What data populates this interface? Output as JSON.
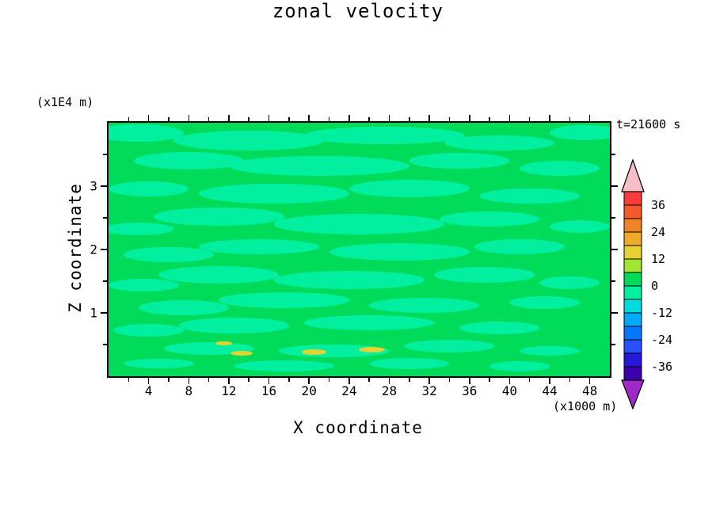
{
  "page": {
    "background": "#ffffff"
  },
  "chart_data": {
    "type": "contour",
    "title": "zonal velocity",
    "xlabel": "X coordinate",
    "ylabel": "Z coordinate",
    "z_unit_label": "(x1E4 m)",
    "x_unit_label": "(x1000 m)",
    "time_label": "t=21600 s",
    "x_range": [
      0,
      50
    ],
    "z_range": [
      0,
      4
    ],
    "x_major_ticks": [
      4,
      8,
      12,
      16,
      20,
      24,
      28,
      32,
      36,
      40,
      44,
      48
    ],
    "x_minor_step": 2,
    "z_major_ticks": [
      1,
      2,
      3
    ],
    "z_minor_ticks": [
      0.5,
      1.5,
      2.5,
      3.5
    ],
    "description": "Filled contour field of zonal velocity; values almost everywhere between -6 and +6 (two green bands, elongated horizontal structures), with a few isolated yellow maxima (~12-18) near the bottom boundary.",
    "field_colors": {
      "base": "#00DC5A",
      "blob": "#00F0A0",
      "spot": "#E0D434"
    },
    "colorbar": {
      "labels": [
        "36",
        "24",
        "12",
        "0",
        "-12",
        "-24",
        "-36"
      ],
      "label_step": 12,
      "segment_step": 6,
      "level_min": -42,
      "level_max": 42,
      "segments_top_to_bottom": [
        "#FA3C3C",
        "#F55A28",
        "#F08228",
        "#F0AA28",
        "#E6D232",
        "#A0E632",
        "#00DC5A",
        "#00F0A0",
        "#00DCDC",
        "#00AAFF",
        "#0078FF",
        "#2850FF",
        "#2818DC",
        "#3C00AA"
      ],
      "arrow_top_color": "#F5BEC8",
      "arrow_bottom_color": "#A028C8"
    },
    "blobs": [
      [
        6,
        4,
        9,
        3.5
      ],
      [
        28,
        7,
        15,
        4
      ],
      [
        55,
        5,
        16,
        3.5
      ],
      [
        78,
        8,
        11,
        3
      ],
      [
        95,
        4,
        7,
        3
      ],
      [
        16,
        15,
        11,
        3.5
      ],
      [
        42,
        17,
        18,
        4
      ],
      [
        70,
        15,
        10,
        3
      ],
      [
        90,
        18,
        8,
        3
      ],
      [
        8,
        26,
        8,
        3
      ],
      [
        33,
        28,
        15,
        4
      ],
      [
        60,
        26,
        12,
        3.5
      ],
      [
        84,
        29,
        10,
        3
      ],
      [
        22,
        37,
        13,
        3.5
      ],
      [
        50,
        40,
        17,
        4
      ],
      [
        76,
        38,
        10,
        3
      ],
      [
        94,
        41,
        6,
        2.5
      ],
      [
        6,
        42,
        7,
        2.5
      ],
      [
        30,
        49,
        12,
        3
      ],
      [
        58,
        51,
        14,
        3.5
      ],
      [
        82,
        49,
        9,
        3
      ],
      [
        12,
        52,
        9,
        3
      ],
      [
        22,
        60,
        12,
        3.5
      ],
      [
        48,
        62,
        15,
        3.5
      ],
      [
        75,
        60,
        10,
        3
      ],
      [
        92,
        63,
        6,
        2.5
      ],
      [
        7,
        64,
        7,
        2.5
      ],
      [
        35,
        70,
        13,
        3
      ],
      [
        63,
        72,
        11,
        3
      ],
      [
        15,
        73,
        9,
        3
      ],
      [
        87,
        71,
        7,
        2.5
      ],
      [
        25,
        80,
        11,
        3
      ],
      [
        52,
        79,
        13,
        3
      ],
      [
        78,
        81,
        8,
        2.5
      ],
      [
        8,
        82,
        7,
        2.5
      ],
      [
        20,
        89,
        9,
        2.5
      ],
      [
        45,
        90,
        11,
        2.5
      ],
      [
        68,
        88,
        9,
        2.5
      ],
      [
        88,
        90,
        6,
        2
      ],
      [
        10,
        95,
        7,
        2
      ],
      [
        35,
        96,
        10,
        2.2
      ],
      [
        60,
        95,
        8,
        2.2
      ],
      [
        82,
        96,
        6,
        2
      ]
    ],
    "spots": [
      [
        23,
        87,
        1.6,
        0.9
      ],
      [
        26.5,
        91,
        2.2,
        1.0
      ],
      [
        41,
        90.5,
        2.4,
        1.0
      ],
      [
        52.5,
        89.5,
        2.6,
        1.1
      ]
    ]
  }
}
